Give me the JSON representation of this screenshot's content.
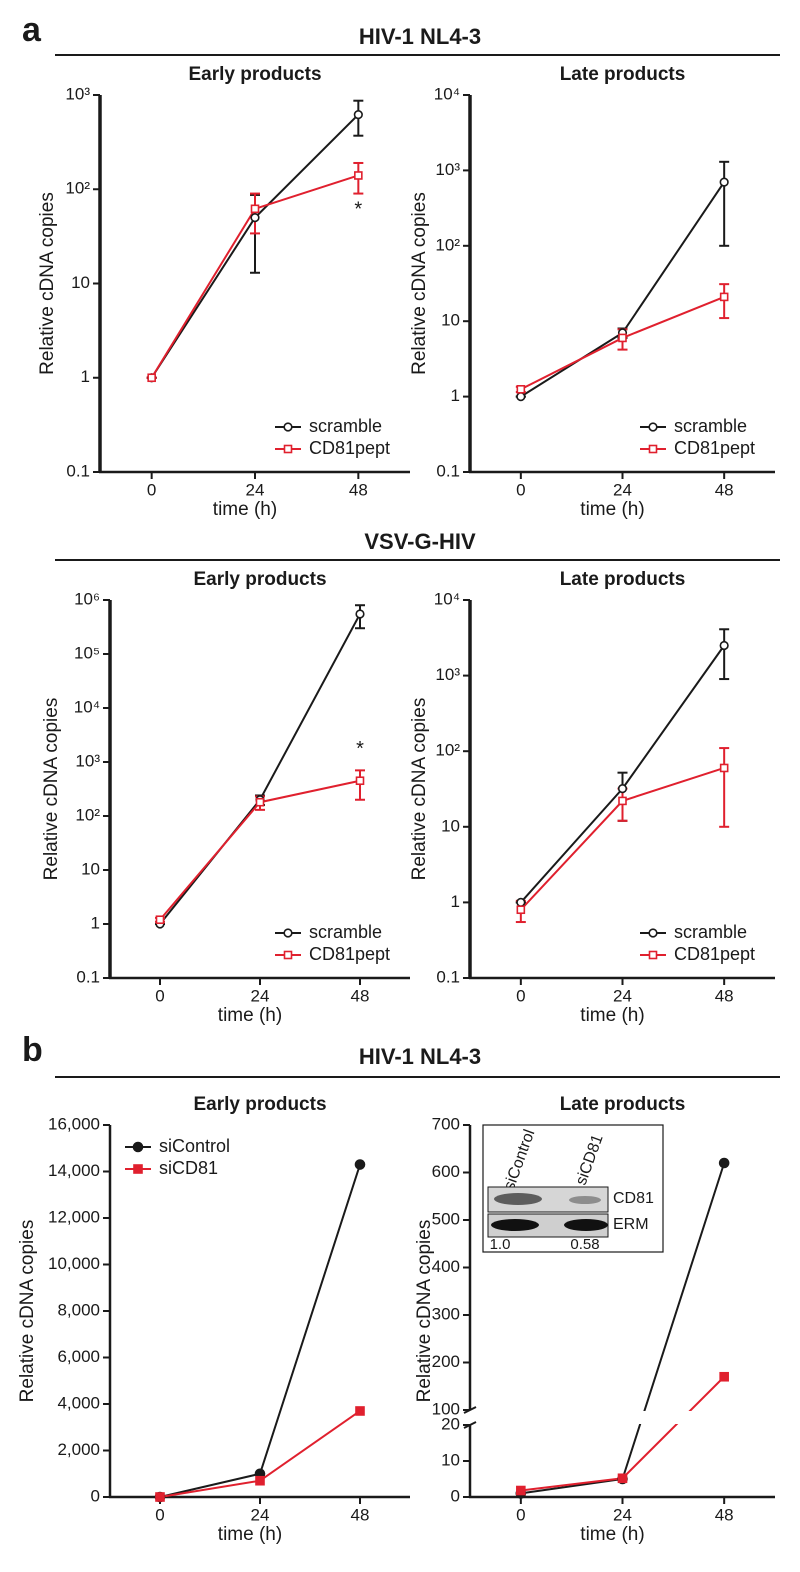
{
  "panel_labels": [
    "a",
    "b"
  ],
  "section_titles": [
    "HIV-1 NL4-3",
    "VSV-G-HIV",
    "HIV-1 NL4-3"
  ],
  "chart_data": [
    {
      "type": "line",
      "title": "Early products",
      "xlabel": "time (h)",
      "ylabel": "Relative cDNA copies",
      "log": true,
      "x": [
        0,
        24,
        48
      ],
      "xlim": [
        -12,
        60
      ],
      "xticks": [
        0,
        24,
        48
      ],
      "ylim": [
        0.1,
        1000
      ],
      "yticks": [
        0.1,
        1,
        10,
        {
          "value": 100,
          "label": "10²"
        },
        {
          "value": 1000,
          "label": "10³"
        }
      ],
      "legend": "lower right",
      "series": [
        {
          "name": "scramble",
          "color": "#1a1a1a",
          "marker": "open-circle",
          "values": [
            1,
            50,
            620
          ],
          "errors": [
            0,
            37,
            250
          ]
        },
        {
          "name": "CD81pept",
          "color": "#e0202e",
          "marker": "open-square",
          "values": [
            1,
            62,
            140
          ],
          "errors": [
            0,
            28,
            50
          ]
        }
      ],
      "annotations": [
        {
          "text": "*",
          "x": 48,
          "y": 60
        }
      ]
    },
    {
      "type": "line",
      "title": "Late products",
      "xlabel": "time (h)",
      "ylabel": "Relative cDNA copies",
      "log": true,
      "x": [
        0,
        24,
        48
      ],
      "xlim": [
        -12,
        60
      ],
      "xticks": [
        0,
        24,
        48
      ],
      "ylim": [
        0.1,
        10000
      ],
      "yticks": [
        0.1,
        1,
        10,
        {
          "value": 100,
          "label": "10²"
        },
        {
          "value": 1000,
          "label": "10³"
        },
        {
          "value": 10000,
          "label": "10⁴"
        }
      ],
      "legend": "lower right",
      "series": [
        {
          "name": "scramble",
          "color": "#1a1a1a",
          "marker": "open-circle",
          "values": [
            1,
            7,
            700
          ],
          "errors": [
            0,
            1,
            600
          ]
        },
        {
          "name": "CD81pept",
          "color": "#e0202e",
          "marker": "open-square",
          "values": [
            1.25,
            6,
            21
          ],
          "errors": [
            0.1,
            1.8,
            10
          ]
        }
      ]
    },
    {
      "type": "line",
      "title": "Early products",
      "xlabel": "time (h)",
      "ylabel": "Relative cDNA copies",
      "log": true,
      "x": [
        0,
        24,
        48
      ],
      "xlim": [
        -12,
        60
      ],
      "xticks": [
        0,
        24,
        48
      ],
      "ylim": [
        0.1,
        1000000
      ],
      "yticks": [
        0.1,
        1,
        10,
        {
          "value": 100,
          "label": "10²"
        },
        {
          "value": 1000,
          "label": "10³"
        },
        {
          "value": 10000,
          "label": "10⁴"
        },
        {
          "value": 100000,
          "label": "10⁵"
        },
        {
          "value": 1000000,
          "label": "10⁶"
        }
      ],
      "legend": "lower right",
      "series": [
        {
          "name": "scramble",
          "color": "#1a1a1a",
          "marker": "open-circle",
          "values": [
            1,
            200,
            550000
          ],
          "errors": [
            0,
            40,
            250000
          ]
        },
        {
          "name": "CD81pept",
          "color": "#e0202e",
          "marker": "open-square",
          "values": [
            1.2,
            180,
            450
          ],
          "errors": [
            0.1,
            50,
            250
          ]
        }
      ],
      "annotations": [
        {
          "text": "*",
          "x": 48,
          "y": 1700
        }
      ]
    },
    {
      "type": "line",
      "title": "Late products",
      "xlabel": "time (h)",
      "ylabel": "Relative cDNA copies",
      "log": true,
      "x": [
        0,
        24,
        48
      ],
      "xlim": [
        -12,
        60
      ],
      "xticks": [
        0,
        24,
        48
      ],
      "ylim": [
        0.1,
        10000
      ],
      "yticks": [
        0.1,
        1,
        10,
        {
          "value": 100,
          "label": "10²"
        },
        {
          "value": 1000,
          "label": "10³"
        },
        {
          "value": 10000,
          "label": "10⁴"
        }
      ],
      "legend": "lower right",
      "series": [
        {
          "name": "scramble",
          "color": "#1a1a1a",
          "marker": "open-circle",
          "values": [
            1,
            32,
            2500
          ],
          "errors": [
            0,
            20,
            1600
          ]
        },
        {
          "name": "CD81pept",
          "color": "#e0202e",
          "marker": "open-square",
          "values": [
            0.8,
            22,
            60
          ],
          "errors": [
            0.25,
            10,
            50
          ]
        }
      ]
    },
    {
      "type": "line",
      "title": "Early products",
      "xlabel": "time (h)",
      "ylabel": "Relative cDNA copies",
      "log": false,
      "x": [
        0,
        24,
        48
      ],
      "xlim": [
        -12,
        60
      ],
      "xticks": [
        0,
        24,
        48
      ],
      "ylim": [
        0,
        16000
      ],
      "yticks": [
        0,
        {
          "value": 2000,
          "label": "2,000"
        },
        {
          "value": 4000,
          "label": "4,000"
        },
        {
          "value": 6000,
          "label": "6,000"
        },
        {
          "value": 8000,
          "label": "8,000"
        },
        {
          "value": 10000,
          "label": "10,000"
        },
        {
          "value": 12000,
          "label": "12,000"
        },
        {
          "value": 14000,
          "label": "14,000"
        },
        {
          "value": 16000,
          "label": "16,000"
        }
      ],
      "legend": "upper left",
      "series": [
        {
          "name": "siControl",
          "color": "#1a1a1a",
          "marker": "filled-circle",
          "values": [
            0,
            1000,
            14300
          ]
        },
        {
          "name": "siCD81",
          "color": "#e0202e",
          "marker": "filled-square",
          "values": [
            0,
            700,
            3700
          ]
        }
      ]
    },
    {
      "type": "line",
      "title": "Late products",
      "xlabel": "time (h)",
      "ylabel": "Relative cDNA copies",
      "log": false,
      "x": [
        0,
        24,
        48
      ],
      "xlim": [
        -12,
        60
      ],
      "xticks": [
        0,
        24,
        48
      ],
      "ylim": [
        0,
        700
      ],
      "axis_break": [
        20,
        100
      ],
      "yticks": [
        0,
        10,
        20,
        100,
        200,
        300,
        400,
        500,
        600,
        700
      ],
      "series": [
        {
          "color": "#1a1a1a",
          "marker": "filled-circle",
          "values": [
            1,
            5,
            620
          ]
        },
        {
          "color": "#e0202e",
          "marker": "filled-square",
          "values": [
            1.8,
            5.2,
            170
          ]
        }
      ]
    }
  ],
  "inset": {
    "lanes": [
      "siControl",
      "siCD81"
    ],
    "bands": [
      "CD81",
      "ERM"
    ],
    "quantification": [
      "1.0",
      "0.58"
    ]
  }
}
